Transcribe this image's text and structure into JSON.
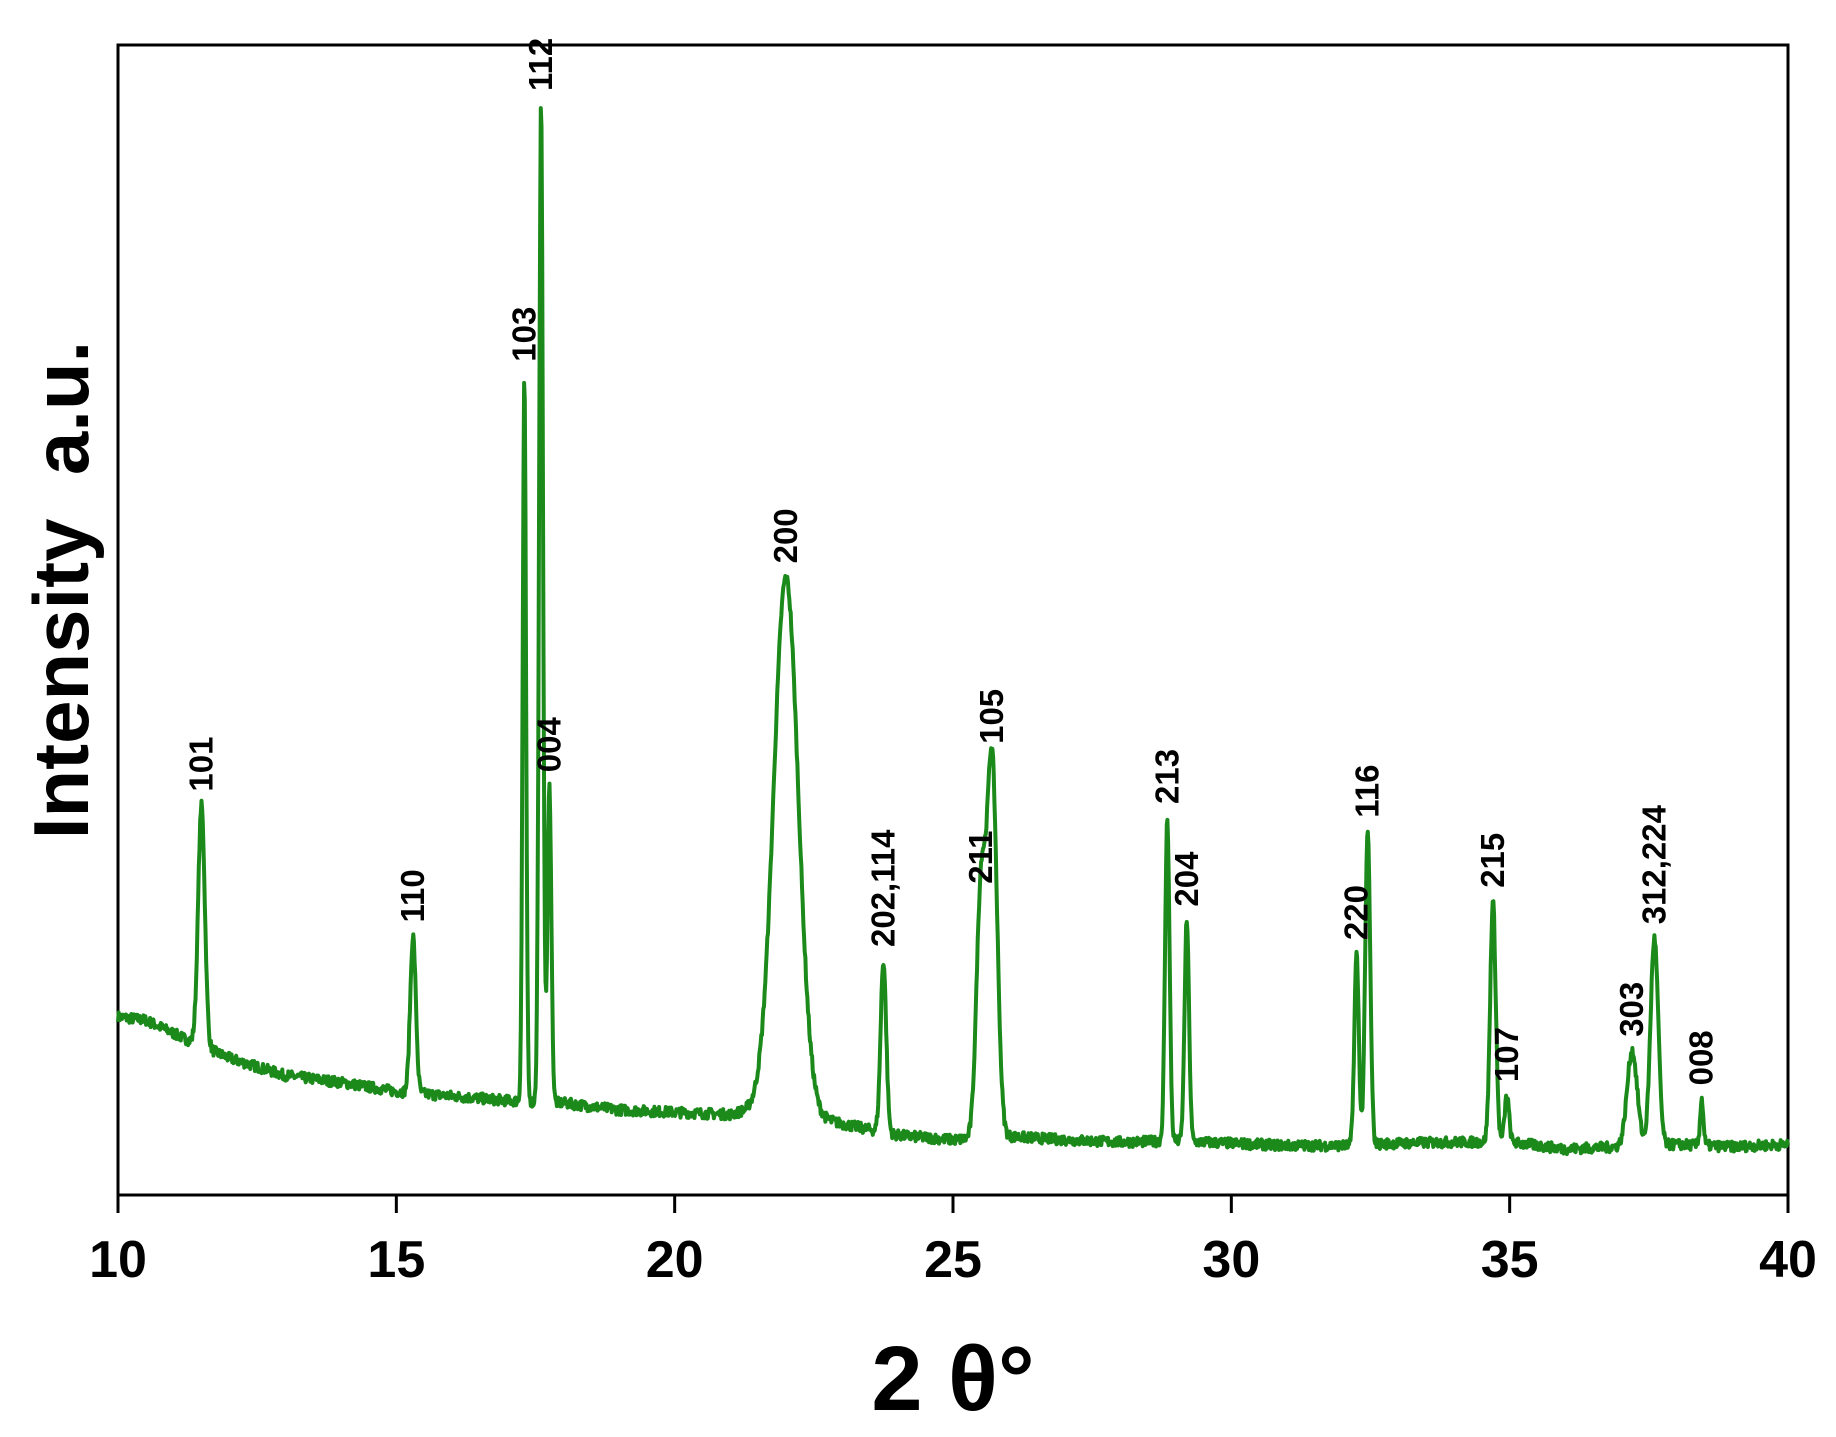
{
  "chart_data": {
    "type": "line",
    "title": "",
    "xlabel": "2 θ°",
    "ylabel": "Intensity  a.u.",
    "xlim": [
      10,
      40
    ],
    "ylim": [
      0,
      1000
    ],
    "xticks": [
      "10",
      "15",
      "20",
      "25",
      "30",
      "35",
      "40"
    ],
    "yticks": [],
    "grid": false,
    "legend": "none",
    "line_color": "#1b8a1b",
    "baseline": [
      [
        10,
        155
      ],
      [
        10.5,
        152
      ],
      [
        11.2,
        136
      ],
      [
        12,
        119
      ],
      [
        13,
        104
      ],
      [
        14,
        98
      ],
      [
        15,
        90
      ],
      [
        16,
        86
      ],
      [
        17,
        82
      ],
      [
        18,
        80
      ],
      [
        19,
        74
      ],
      [
        20,
        72
      ],
      [
        21,
        70
      ],
      [
        21.5,
        76
      ],
      [
        22.5,
        68
      ],
      [
        23,
        62
      ],
      [
        24,
        52
      ],
      [
        25,
        48
      ],
      [
        26,
        51
      ],
      [
        27,
        48
      ],
      [
        28,
        46
      ],
      [
        29,
        47
      ],
      [
        30,
        45
      ],
      [
        31,
        43
      ],
      [
        32,
        43
      ],
      [
        33,
        45
      ],
      [
        34,
        46
      ],
      [
        35,
        46
      ],
      [
        36,
        40
      ],
      [
        37,
        42
      ],
      [
        38,
        44
      ],
      [
        39,
        42
      ],
      [
        40,
        44
      ]
    ],
    "peaks": [
      {
        "label": "101",
        "x": 11.5,
        "y": 209,
        "w": 0.06
      },
      {
        "label": "110",
        "x": 15.3,
        "y": 136,
        "w": 0.05
      },
      {
        "label": "103",
        "x": 17.3,
        "y": 631,
        "w": 0.03
      },
      {
        "label": "112",
        "x": 17.6,
        "y": 867,
        "w": 0.035
      },
      {
        "label": "004",
        "x": 17.75,
        "y": 275,
        "w": 0.035
      },
      {
        "label": "200",
        "x": 22.0,
        "y": 465,
        "w": 0.22
      },
      {
        "label": "202,114",
        "x": 23.75,
        "y": 149,
        "w": 0.05
      },
      {
        "label": "211",
        "x": 25.5,
        "y": 209,
        "w": 0.08
      },
      {
        "label": "105",
        "x": 25.7,
        "y": 330,
        "w": 0.09
      },
      {
        "label": "213",
        "x": 28.85,
        "y": 281,
        "w": 0.04
      },
      {
        "label": "204",
        "x": 29.2,
        "y": 192,
        "w": 0.04
      },
      {
        "label": "220",
        "x": 32.25,
        "y": 166,
        "w": 0.04
      },
      {
        "label": "116",
        "x": 32.45,
        "y": 272,
        "w": 0.045
      },
      {
        "label": "215",
        "x": 34.7,
        "y": 209,
        "w": 0.05
      },
      {
        "label": "107",
        "x": 34.95,
        "y": 40,
        "w": 0.04
      },
      {
        "label": "303",
        "x": 37.2,
        "y": 83,
        "w": 0.09
      },
      {
        "label": "312,224",
        "x": 37.6,
        "y": 180,
        "w": 0.07
      },
      {
        "label": "008",
        "x": 38.45,
        "y": 40,
        "w": 0.03
      }
    ]
  }
}
